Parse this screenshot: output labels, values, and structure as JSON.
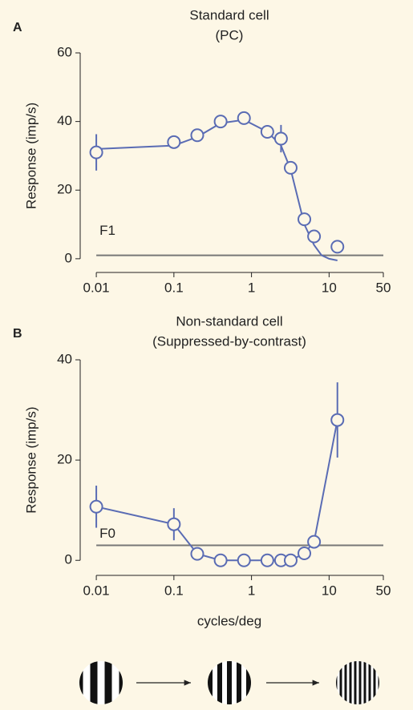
{
  "chart_data": [
    {
      "type": "line",
      "panel": "A",
      "title": "Standard cell",
      "subtitle": "(PC)",
      "ylabel": "Response (imp/s)",
      "x": [
        0.01,
        0.1,
        0.2,
        0.4,
        0.8,
        1.6,
        2.4,
        3.2,
        4.8,
        6.4,
        12.8
      ],
      "series": [
        {
          "color": "#5a6cb4",
          "values": [
            31,
            34,
            36,
            40,
            41,
            37,
            35,
            26.5,
            11.5,
            6.5,
            3.5
          ],
          "errors": [
            5.3,
            null,
            null,
            null,
            null,
            null,
            4,
            null,
            null,
            null,
            null
          ]
        }
      ],
      "fit": {
        "x": [
          0.01,
          0.1,
          0.2,
          0.4,
          0.8,
          1.6,
          2.4,
          3.2,
          4.8,
          6.4,
          8,
          10,
          12.8
        ],
        "values": [
          32,
          33,
          35.5,
          39.5,
          40.5,
          37,
          33,
          26,
          10,
          4,
          1,
          0,
          -0.5
        ]
      },
      "baseline": {
        "label": "F1",
        "value": 1,
        "color": "#777777"
      },
      "xlim": [
        0.0062,
        50
      ],
      "xticks": [
        0.01,
        0.1,
        1,
        10,
        50
      ],
      "log_x": true,
      "ylim": [
        -4,
        60
      ],
      "yticks": [
        0,
        20,
        40,
        60
      ]
    },
    {
      "type": "line",
      "panel": "B",
      "title": "Non-standard cell",
      "subtitle": "(Suppressed-by-contrast)",
      "ylabel": "Response (imp/s)",
      "xlabel": "cycles/deg",
      "x": [
        0.01,
        0.1,
        0.2,
        0.4,
        0.8,
        1.6,
        2.4,
        3.2,
        4.8,
        6.4,
        12.8
      ],
      "series": [
        {
          "color": "#5a6cb4",
          "values": [
            10.7,
            7.2,
            1.3,
            0,
            0,
            0,
            0,
            0,
            1.4,
            3.7,
            28
          ],
          "errors": [
            4.2,
            3.2,
            null,
            null,
            null,
            null,
            null,
            null,
            null,
            null,
            7.5
          ]
        }
      ],
      "baseline": {
        "label": "F0",
        "value": 3,
        "color": "#777777"
      },
      "xlim": [
        0.0062,
        50
      ],
      "xticks": [
        0.01,
        0.1,
        1,
        10,
        50
      ],
      "log_x": true,
      "ylim": [
        -3,
        40
      ],
      "yticks": [
        0,
        20,
        40
      ]
    }
  ]
}
